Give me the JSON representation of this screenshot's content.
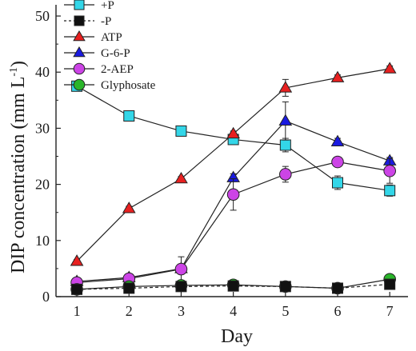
{
  "chart_data": {
    "type": "line",
    "xlabel": "Day",
    "ylabel": "DIP concentration (mm L",
    "ylabel_sup": "-1",
    "ylabel_close": ")",
    "x": [
      1,
      2,
      3,
      4,
      5,
      6,
      7
    ],
    "xlim": [
      0.6,
      7.35
    ],
    "ylim": [
      0,
      52
    ],
    "xticks": [
      "1",
      "2",
      "3",
      "4",
      "5",
      "6",
      "7"
    ],
    "yticks": [
      "0",
      "10",
      "20",
      "30",
      "40",
      "50"
    ],
    "ytick_values": [
      0,
      10,
      20,
      30,
      40,
      50
    ],
    "grid": false,
    "legend_position": "top-left",
    "series": [
      {
        "name": "+P",
        "marker": "square",
        "color": "#33d6e8",
        "line": "solid",
        "values": [
          37.5,
          32.2,
          29.5,
          28.0,
          27.0,
          20.3,
          18.9
        ],
        "errors": [
          0.8,
          0.7,
          0.7,
          0.8,
          1.2,
          1.2,
          1.0
        ]
      },
      {
        "name": "-P",
        "marker": "square",
        "color": "#111111",
        "line": "dashed",
        "values": [
          1.3,
          1.5,
          1.8,
          1.9,
          1.8,
          1.5,
          2.2
        ],
        "errors": [
          0.3,
          0.3,
          0.3,
          0.3,
          0.3,
          0.3,
          0.3
        ]
      },
      {
        "name": "ATP",
        "marker": "triangle-up",
        "color": "#e82020",
        "line": "solid",
        "values": [
          6.3,
          15.7,
          21.0,
          29.0,
          37.2,
          39.0,
          40.6
        ],
        "errors": [
          0.3,
          0.4,
          0.4,
          0.5,
          1.5,
          0.5,
          0.5
        ]
      },
      {
        "name": "G-6-P",
        "marker": "triangle-up",
        "color": "#1a1ae0",
        "line": "solid",
        "values": [
          2.7,
          3.4,
          5.0,
          21.2,
          31.3,
          27.6,
          24.2
        ],
        "errors": [
          0.4,
          0.4,
          0.5,
          0.7,
          3.4,
          0.6,
          0.6
        ]
      },
      {
        "name": "2-AEP",
        "marker": "circle",
        "color": "#cc44e6",
        "line": "solid",
        "values": [
          2.5,
          3.2,
          4.9,
          18.2,
          21.8,
          24.0,
          22.4
        ],
        "errors": [
          0.4,
          0.5,
          2.2,
          2.8,
          1.4,
          0.6,
          2.2
        ]
      },
      {
        "name": "Glyphosate",
        "marker": "circle",
        "color": "#2ab52a",
        "line": "solid",
        "values": [
          1.3,
          1.8,
          2.0,
          2.1,
          1.8,
          1.5,
          3.1
        ],
        "errors": [
          0.3,
          0.3,
          0.3,
          0.3,
          0.3,
          0.3,
          0.5
        ]
      }
    ]
  }
}
